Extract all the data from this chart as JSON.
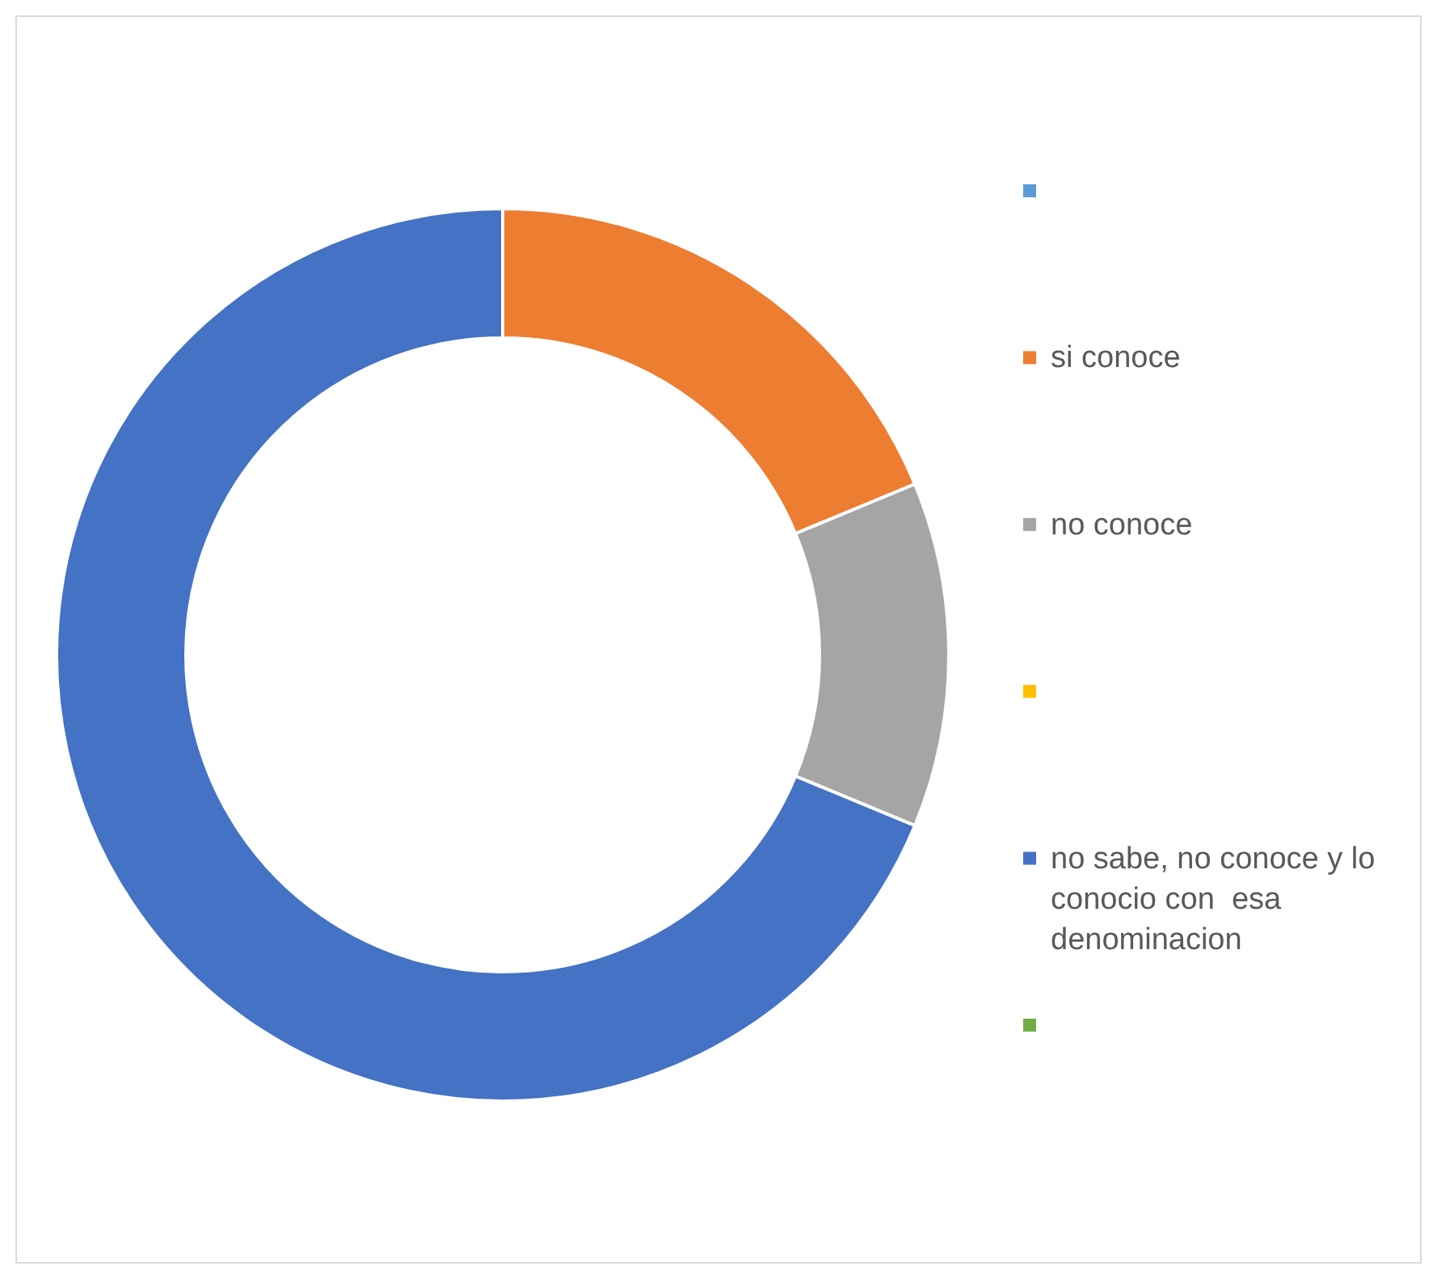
{
  "chart_data": {
    "type": "donut",
    "categories": [
      null,
      "si conoce",
      "no conoce",
      null,
      "no sabe, no conoce y lo conocio con  esa denominacion",
      null
    ],
    "values": [
      0,
      18.75,
      12.5,
      0,
      68.75,
      0
    ],
    "colors": [
      "#5b9bd5",
      "#ed7d31",
      "#a5a5a5",
      "#ffc000",
      "#4472c4",
      "#70ad47"
    ],
    "legend": "right"
  }
}
